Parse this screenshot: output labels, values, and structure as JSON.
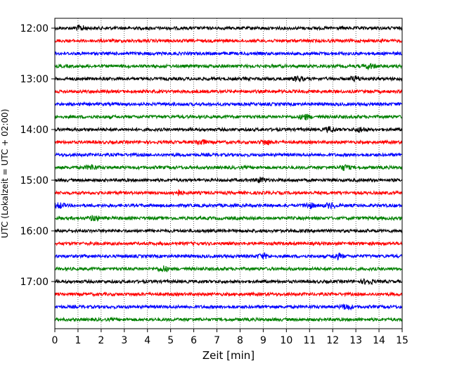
{
  "chart_data": {
    "type": "line",
    "title": "",
    "xlabel": "Zeit  [min]",
    "ylabel": "UTC (Lokalzeit = UTC + 02:00)",
    "xlim": [
      0,
      15
    ],
    "x_ticks": [
      0,
      1,
      2,
      3,
      4,
      5,
      6,
      7,
      8,
      9,
      10,
      11,
      12,
      13,
      14,
      15
    ],
    "y_tick_labels": [
      "12:00",
      "13:00",
      "14:00",
      "15:00",
      "16:00",
      "17:00"
    ],
    "trace_start_times": [
      "12:00",
      "12:15",
      "12:30",
      "12:45",
      "13:00",
      "13:15",
      "13:30",
      "13:45",
      "14:00",
      "14:15",
      "14:30",
      "14:45",
      "15:00",
      "15:15",
      "15:30",
      "15:45",
      "16:00",
      "16:15",
      "16:30",
      "16:45",
      "17:00",
      "17:15",
      "17:30",
      "17:45"
    ],
    "trace_colors": [
      "#000000",
      "#ff0000",
      "#0000ff",
      "#008000"
    ],
    "grid": "vertical dotted",
    "events": [
      {
        "trace": "12:00",
        "minute": 1.1
      },
      {
        "trace": "12:45",
        "minute": 13.6
      },
      {
        "trace": "13:00",
        "minute": 10.5
      },
      {
        "trace": "13:00",
        "minute": 13.0
      },
      {
        "trace": "13:45",
        "minute": 10.8
      },
      {
        "trace": "14:00",
        "minute": 11.9
      },
      {
        "trace": "14:00",
        "minute": 13.2
      },
      {
        "trace": "14:15",
        "minute": 6.3
      },
      {
        "trace": "14:15",
        "minute": 9.1
      },
      {
        "trace": "14:45",
        "minute": 1.6
      },
      {
        "trace": "14:45",
        "minute": 12.5
      },
      {
        "trace": "15:00",
        "minute": 8.9
      },
      {
        "trace": "15:15",
        "minute": 5.3
      },
      {
        "trace": "15:30",
        "minute": 0.2
      },
      {
        "trace": "15:30",
        "minute": 11.0
      },
      {
        "trace": "15:30",
        "minute": 11.9
      },
      {
        "trace": "15:45",
        "minute": 1.7
      },
      {
        "trace": "16:30",
        "minute": 9.0
      },
      {
        "trace": "16:30",
        "minute": 12.2
      },
      {
        "trace": "16:45",
        "minute": 4.7
      },
      {
        "trace": "17:00",
        "minute": 13.5
      },
      {
        "trace": "17:30",
        "minute": 12.6
      }
    ]
  }
}
